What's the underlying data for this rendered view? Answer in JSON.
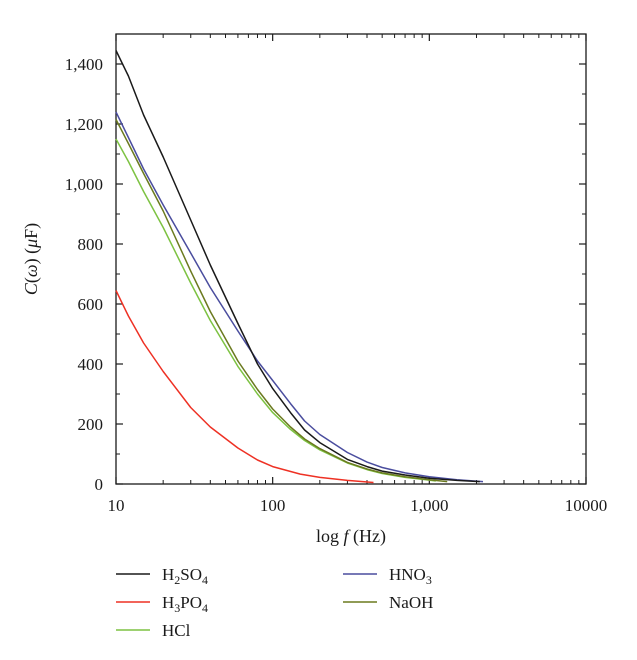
{
  "chart_data": {
    "type": "line",
    "x_scale": "log",
    "xlim": [
      10,
      10000
    ],
    "ylim": [
      0,
      1500
    ],
    "grid": false,
    "legend_position": "below-left",
    "xlabel": {
      "prefix": "log ",
      "italic": "f",
      "suffix": " (Hz)"
    },
    "ylabel": {
      "c": "C",
      "open": "(",
      "omega": "ω",
      "close": ")",
      "mid": " (",
      "mu": "μ",
      "unit": "F)"
    },
    "xticks": [
      {
        "value": 10,
        "label": "10"
      },
      {
        "value": 100,
        "label": "100"
      },
      {
        "value": 1000,
        "label": "1,000"
      },
      {
        "value": 10000,
        "label": "10000"
      }
    ],
    "yticks": [
      {
        "value": 0,
        "label": "0"
      },
      {
        "value": 200,
        "label": "200"
      },
      {
        "value": 400,
        "label": "400"
      },
      {
        "value": 600,
        "label": "600"
      },
      {
        "value": 800,
        "label": "800"
      },
      {
        "value": 1000,
        "label": "1,000"
      },
      {
        "value": 1200,
        "label": "1,200"
      },
      {
        "value": 1400,
        "label": "1,400"
      }
    ],
    "series": [
      {
        "name": "H2SO4",
        "label_parts": [
          {
            "t": "H"
          },
          {
            "t": "2",
            "sub": true
          },
          {
            "t": "SO"
          },
          {
            "t": "4",
            "sub": true
          }
        ],
        "color": "#1a1a1a",
        "points": [
          [
            10,
            1445
          ],
          [
            12,
            1360
          ],
          [
            15,
            1230
          ],
          [
            20,
            1090
          ],
          [
            30,
            880
          ],
          [
            40,
            730
          ],
          [
            60,
            535
          ],
          [
            80,
            400
          ],
          [
            100,
            318
          ],
          [
            130,
            238
          ],
          [
            160,
            180
          ],
          [
            200,
            138
          ],
          [
            300,
            82
          ],
          [
            400,
            58
          ],
          [
            500,
            43
          ],
          [
            700,
            30
          ],
          [
            1000,
            19
          ],
          [
            1500,
            12
          ],
          [
            2100,
            8
          ]
        ]
      },
      {
        "name": "H3PO4",
        "label_parts": [
          {
            "t": "H"
          },
          {
            "t": "3",
            "sub": true
          },
          {
            "t": "PO"
          },
          {
            "t": "4",
            "sub": true
          }
        ],
        "color": "#ee3124",
        "points": [
          [
            10,
            645
          ],
          [
            12,
            560
          ],
          [
            15,
            470
          ],
          [
            20,
            375
          ],
          [
            30,
            255
          ],
          [
            40,
            190
          ],
          [
            60,
            120
          ],
          [
            80,
            80
          ],
          [
            100,
            58
          ],
          [
            150,
            33
          ],
          [
            200,
            22
          ],
          [
            300,
            12
          ],
          [
            440,
            5
          ]
        ]
      },
      {
        "name": "HNO3",
        "label_parts": [
          {
            "t": "HNO"
          },
          {
            "t": "3",
            "sub": true
          }
        ],
        "color": "#4a4d9e",
        "points": [
          [
            10,
            1240
          ],
          [
            12,
            1155
          ],
          [
            15,
            1050
          ],
          [
            20,
            930
          ],
          [
            30,
            770
          ],
          [
            40,
            655
          ],
          [
            60,
            510
          ],
          [
            80,
            410
          ],
          [
            100,
            345
          ],
          [
            130,
            268
          ],
          [
            160,
            210
          ],
          [
            200,
            165
          ],
          [
            300,
            105
          ],
          [
            400,
            73
          ],
          [
            500,
            55
          ],
          [
            700,
            37
          ],
          [
            1000,
            24
          ],
          [
            1500,
            14
          ],
          [
            2200,
            8
          ]
        ]
      },
      {
        "name": "NaOH",
        "label_parts": [
          {
            "t": "NaOH"
          }
        ],
        "color": "#6b7a1f",
        "points": [
          [
            10,
            1215
          ],
          [
            12,
            1135
          ],
          [
            15,
            1035
          ],
          [
            20,
            910
          ],
          [
            30,
            710
          ],
          [
            40,
            575
          ],
          [
            60,
            410
          ],
          [
            80,
            315
          ],
          [
            100,
            250
          ],
          [
            130,
            190
          ],
          [
            160,
            150
          ],
          [
            200,
            118
          ],
          [
            300,
            72
          ],
          [
            400,
            50
          ],
          [
            500,
            37
          ],
          [
            700,
            24
          ],
          [
            1000,
            14
          ],
          [
            1300,
            8
          ]
        ]
      },
      {
        "name": "HCl",
        "label_parts": [
          {
            "t": "HCl"
          }
        ],
        "color": "#7dc242",
        "points": [
          [
            10,
            1150
          ],
          [
            12,
            1075
          ],
          [
            15,
            975
          ],
          [
            20,
            855
          ],
          [
            30,
            670
          ],
          [
            40,
            545
          ],
          [
            60,
            392
          ],
          [
            80,
            300
          ],
          [
            100,
            238
          ],
          [
            130,
            182
          ],
          [
            160,
            145
          ],
          [
            200,
            114
          ],
          [
            300,
            70
          ],
          [
            400,
            48
          ],
          [
            500,
            35
          ],
          [
            700,
            22
          ],
          [
            1000,
            13
          ],
          [
            1100,
            10
          ]
        ]
      }
    ],
    "legend_order": [
      "H2SO4",
      "HNO3",
      "H3PO4",
      "NaOH",
      "HCl"
    ]
  }
}
